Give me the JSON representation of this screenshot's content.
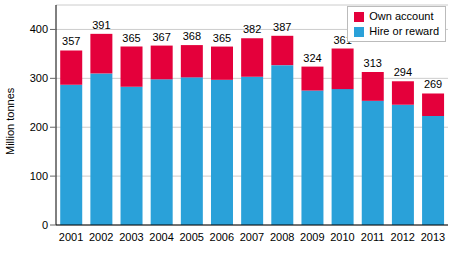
{
  "chart_data": {
    "type": "bar",
    "stacked": true,
    "y_label": "Million tonnes",
    "categories": [
      "2001",
      "2002",
      "2003",
      "2004",
      "2005",
      "2006",
      "2007",
      "2008",
      "2009",
      "2010",
      "2011",
      "2012",
      "2013"
    ],
    "series": [
      {
        "name": "Hire or reward",
        "color": "#2aa1d9",
        "values": [
          287,
          310,
          283,
          298,
          302,
          297,
          303,
          327,
          275,
          278,
          254,
          246,
          223
        ]
      },
      {
        "name": "Own account",
        "color": "#e4003b",
        "values": [
          70,
          81,
          82,
          69,
          66,
          68,
          79,
          60,
          49,
          83,
          59,
          48,
          46
        ]
      }
    ],
    "totals": [
      357,
      391,
      365,
      367,
      368,
      365,
      382,
      387,
      324,
      361,
      313,
      294,
      269
    ],
    "ylim": [
      0,
      450
    ],
    "yticks": [
      0,
      100,
      200,
      300,
      400
    ],
    "grid": true,
    "legend": "top-right"
  }
}
